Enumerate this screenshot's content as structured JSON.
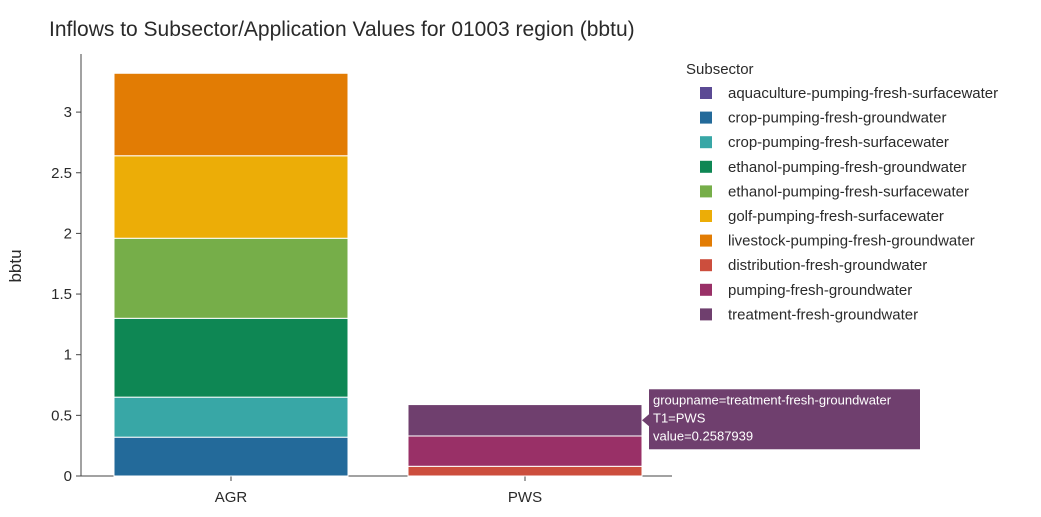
{
  "chart_data": {
    "type": "bar",
    "stacked": true,
    "title": "Inflows to Subsector/Application Values for 01003 region (bbtu)",
    "xlabel": "",
    "ylabel": "bbtu",
    "categories": [
      "AGR",
      "PWS"
    ],
    "ylim": [
      0,
      3.4
    ],
    "yticks": [
      0,
      0.5,
      1,
      1.5,
      2,
      2.5,
      3
    ],
    "ytick_labels": [
      "0",
      "0.5",
      "1",
      "1.5",
      "2",
      "2.5",
      "3"
    ],
    "grid": false,
    "legend": {
      "title": "Subsector",
      "placement": "right"
    },
    "series": [
      {
        "name": "aquaculture-pumping-fresh-surfacewater",
        "color": "#5b4a94",
        "values": [
          0,
          0
        ]
      },
      {
        "name": "crop-pumping-fresh-groundwater",
        "color": "#236a9a",
        "values": [
          0.32,
          0
        ]
      },
      {
        "name": "crop-pumping-fresh-surfacewater",
        "color": "#38a7a6",
        "values": [
          0.33,
          0
        ]
      },
      {
        "name": "ethanol-pumping-fresh-groundwater",
        "color": "#0e8754",
        "values": [
          0.65,
          0
        ]
      },
      {
        "name": "ethanol-pumping-fresh-surfacewater",
        "color": "#76ae49",
        "values": [
          0.66,
          0
        ]
      },
      {
        "name": "golf-pumping-fresh-surfacewater",
        "color": "#ecad07",
        "values": [
          0.68,
          0
        ]
      },
      {
        "name": "livestock-pumping-fresh-groundwater",
        "color": "#e27c04",
        "values": [
          0.68,
          0
        ]
      },
      {
        "name": "distribution-fresh-groundwater",
        "color": "#cc4e3d",
        "values": [
          0,
          0.08
        ]
      },
      {
        "name": "pumping-fresh-groundwater",
        "color": "#993067",
        "values": [
          0,
          0.25
        ]
      },
      {
        "name": "treatment-fresh-groundwater",
        "color": "#6f3f6e",
        "values": [
          0,
          0.2587939
        ]
      }
    ]
  },
  "tooltip": {
    "lines": [
      "groupname=treatment-fresh-groundwater",
      "T1=PWS",
      "value=0.2587939"
    ],
    "series": "treatment-fresh-groundwater",
    "category": "PWS"
  }
}
